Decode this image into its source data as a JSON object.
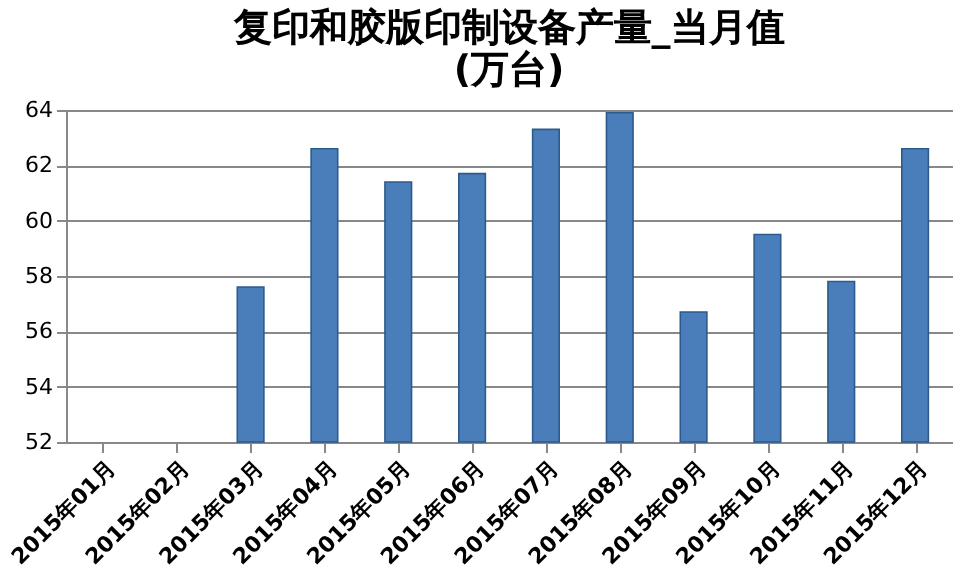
{
  "chart_data": {
    "type": "bar",
    "title": [
      "复印和胶版印制设备产量_当月值",
      "(万台)"
    ],
    "categories": [
      "2015年01月",
      "2015年02月",
      "2015年03月",
      "2015年04月",
      "2015年05月",
      "2015年06月",
      "2015年07月",
      "2015年08月",
      "2015年09月",
      "2015年10月",
      "2015年11月",
      "2015年12月"
    ],
    "values": [
      null,
      null,
      57.6,
      62.6,
      61.4,
      61.7,
      63.3,
      63.9,
      56.7,
      59.5,
      57.8,
      62.6
    ],
    "color": "#4a7ebb",
    "ylim": [
      52,
      64
    ],
    "yticks": [
      52,
      54,
      56,
      58,
      60,
      62,
      64
    ],
    "grid": "y"
  }
}
